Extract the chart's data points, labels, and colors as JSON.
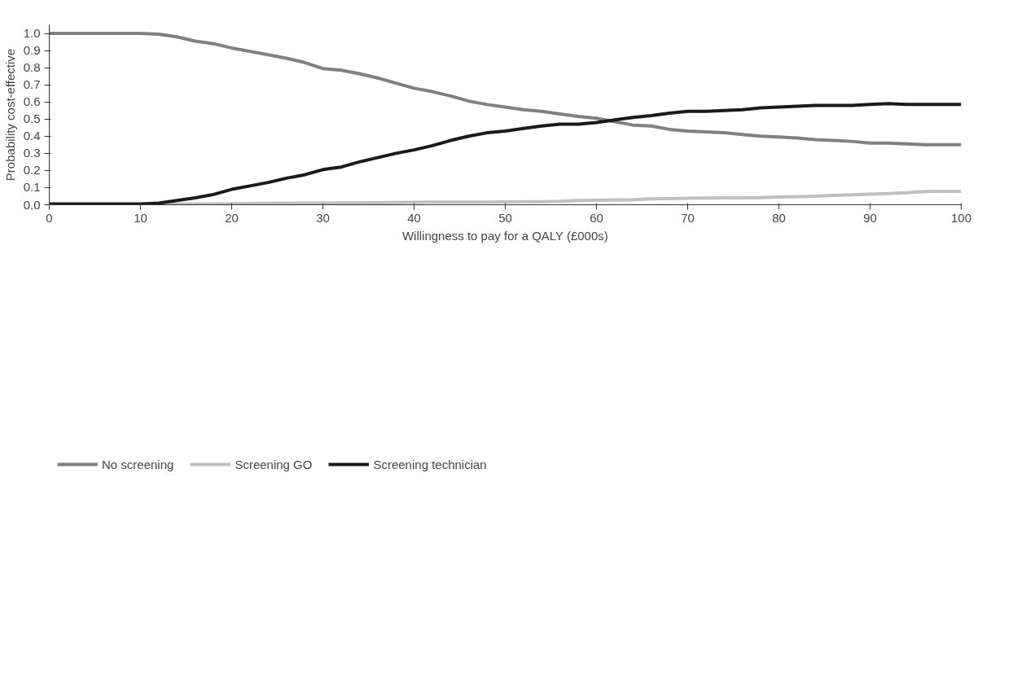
{
  "chart_data": {
    "type": "line",
    "xlabel": "Willingness to pay for a QALY (£000s)",
    "ylabel": "Probability cost-effective",
    "xlim": [
      0,
      100
    ],
    "xticks": [
      0,
      10,
      20,
      30,
      40,
      50,
      60,
      70,
      80,
      90,
      100
    ],
    "ylim": [
      0,
      1.05
    ],
    "yticks": [
      {
        "value": 0,
        "label": "0.0"
      },
      0.1,
      0.2,
      0.3,
      0.4,
      0.5,
      0.6,
      0.7,
      0.8,
      0.9,
      {
        "value": 1,
        "label": "1.0"
      }
    ],
    "grid": false,
    "legend": "bottom",
    "marker": "none",
    "line_style": "solid",
    "x": [
      0,
      2,
      4,
      6,
      8,
      10,
      12,
      14,
      16,
      18,
      20,
      22,
      24,
      26,
      28,
      30,
      32,
      34,
      36,
      38,
      40,
      42,
      44,
      46,
      48,
      50,
      52,
      54,
      56,
      58,
      60,
      62,
      64,
      66,
      68,
      70,
      72,
      74,
      76,
      78,
      80,
      82,
      84,
      86,
      88,
      90,
      92,
      94,
      96,
      98,
      100
    ],
    "series": [
      {
        "name": "No screening",
        "color": "#808080",
        "values": [
          1.0,
          1.0,
          1.0,
          1.0,
          1.0,
          1.0,
          0.995,
          0.98,
          0.955,
          0.94,
          0.915,
          0.895,
          0.875,
          0.855,
          0.83,
          0.795,
          0.785,
          0.765,
          0.74,
          0.71,
          0.68,
          0.66,
          0.635,
          0.605,
          0.585,
          0.57,
          0.555,
          0.545,
          0.53,
          0.515,
          0.505,
          0.485,
          0.465,
          0.46,
          0.44,
          0.43,
          0.425,
          0.42,
          0.41,
          0.4,
          0.395,
          0.39,
          0.38,
          0.375,
          0.37,
          0.36,
          0.36,
          0.355,
          0.35,
          0.35,
          0.35
        ]
      },
      {
        "name": "Screening GO",
        "color": "#c0c0c0",
        "values": [
          0,
          0,
          0,
          0,
          0,
          0,
          0.002,
          0.004,
          0.005,
          0.005,
          0.006,
          0.007,
          0.008,
          0.008,
          0.009,
          0.01,
          0.011,
          0.011,
          0.012,
          0.013,
          0.014,
          0.015,
          0.015,
          0.016,
          0.016,
          0.017,
          0.018,
          0.018,
          0.02,
          0.025,
          0.026,
          0.028,
          0.03,
          0.035,
          0.036,
          0.038,
          0.039,
          0.04,
          0.04,
          0.042,
          0.045,
          0.047,
          0.05,
          0.055,
          0.058,
          0.062,
          0.065,
          0.07,
          0.077,
          0.078,
          0.078
        ]
      },
      {
        "name": "Screening technician",
        "color": "#1a1a1a",
        "values": [
          0.005,
          0.005,
          0.005,
          0.005,
          0.005,
          0.005,
          0.01,
          0.025,
          0.04,
          0.06,
          0.09,
          0.11,
          0.13,
          0.155,
          0.175,
          0.205,
          0.22,
          0.25,
          0.275,
          0.3,
          0.32,
          0.345,
          0.375,
          0.4,
          0.42,
          0.43,
          0.445,
          0.46,
          0.47,
          0.47,
          0.48,
          0.495,
          0.51,
          0.52,
          0.535,
          0.545,
          0.545,
          0.55,
          0.555,
          0.565,
          0.57,
          0.575,
          0.58,
          0.58,
          0.58,
          0.585,
          0.59,
          0.585,
          0.585,
          0.585,
          0.585
        ]
      }
    ]
  }
}
